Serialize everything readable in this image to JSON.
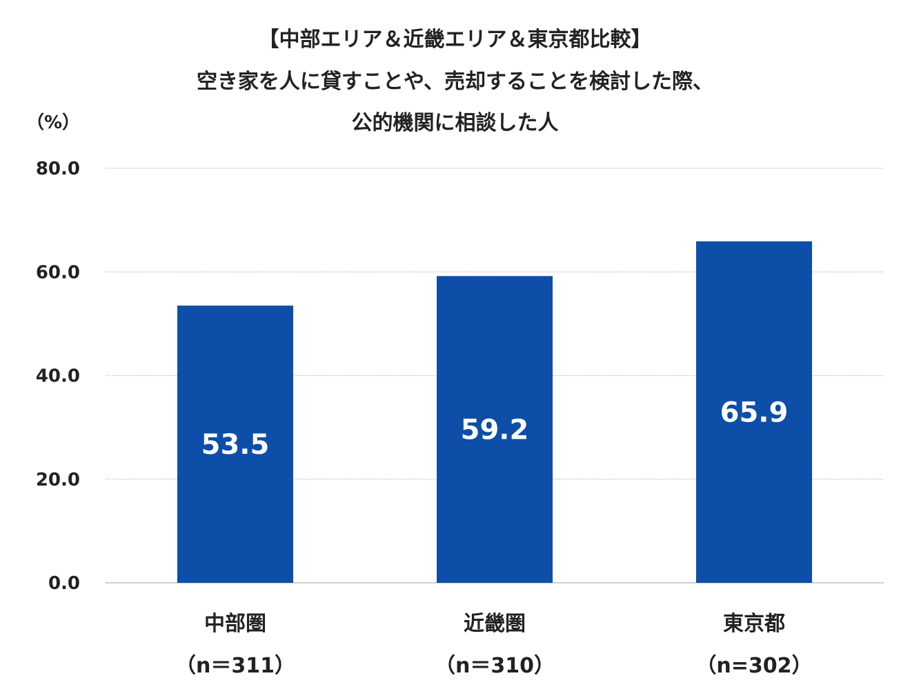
{
  "chart_data": {
    "type": "bar",
    "title_lines": [
      "【中部エリア＆近畿エリア＆東京都比較】",
      "空き家を人に貸すことや、売却することを検討した際、",
      "公的機関に相談した人"
    ],
    "y_unit": "（%）",
    "categories": [
      "中部圏",
      "近畿圏",
      "東京都"
    ],
    "category_sublabels": [
      "（n＝311）",
      "（n＝310）",
      "（n=302）"
    ],
    "values": [
      53.5,
      59.2,
      65.9
    ],
    "value_labels": [
      "53.5",
      "59.2",
      "65.9"
    ],
    "ylim": [
      0,
      80
    ],
    "y_ticks": [
      0,
      20,
      40,
      60,
      80
    ],
    "y_tick_labels": [
      "0.0",
      "20.0",
      "40.0",
      "60.0",
      "80.0"
    ],
    "grid": true,
    "colors": {
      "bar": "#0d4ea8",
      "grid": "#cfcfcf",
      "text": "#222222",
      "data_label": "#ffffff"
    }
  }
}
